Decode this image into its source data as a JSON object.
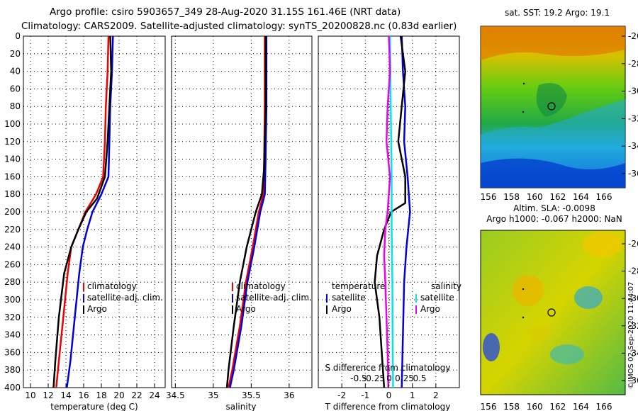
{
  "header": {
    "line1": "Argo profile: csiro 5903657_349 28-Aug-2020 31.15S 161.46E (NRT data)",
    "line2": "Climatology: CARS2009. Satellite-adjusted climatology: synTS_20200828.nc (0.83d earlier)"
  },
  "depth_ticks": [
    0,
    20,
    40,
    60,
    80,
    100,
    120,
    140,
    160,
    180,
    200,
    220,
    240,
    260,
    280,
    300,
    320,
    340,
    360,
    380,
    400
  ],
  "colors": {
    "climatology": "#ee0000",
    "satellite": "#0000dd",
    "argo": "#000000",
    "sat_salinity": "#00e5ee",
    "argo_salinity": "#ee00ee"
  },
  "chart_data": [
    {
      "type": "line",
      "id": "temperature",
      "xlabel": "temperature (deg C)",
      "xlim": [
        9.2,
        25.2
      ],
      "ylim": [
        0,
        400
      ],
      "xticks": [
        10,
        12,
        14,
        16,
        18,
        20,
        22,
        24
      ],
      "xtick_labels": [
        "10",
        "12",
        "14",
        "16",
        "18",
        "20",
        "22",
        "24"
      ],
      "legend": [
        "climatology",
        "satellite-adj. clim.",
        "Argo"
      ],
      "series": [
        {
          "name": "climatology",
          "color_key": "climatology",
          "points": [
            [
              18.8,
              0
            ],
            [
              18.7,
              40
            ],
            [
              18.5,
              80
            ],
            [
              18.4,
              120
            ],
            [
              18.2,
              160
            ],
            [
              17.4,
              180
            ],
            [
              16.2,
              200
            ],
            [
              15.4,
              220
            ],
            [
              14.6,
              240
            ],
            [
              14.2,
              270
            ],
            [
              13.7,
              320
            ],
            [
              13.2,
              370
            ],
            [
              12.9,
              400
            ]
          ]
        },
        {
          "name": "satellite-adj. clim.",
          "color_key": "satellite",
          "points": [
            [
              19.3,
              0
            ],
            [
              19.2,
              40
            ],
            [
              19.0,
              80
            ],
            [
              18.9,
              120
            ],
            [
              18.8,
              160
            ],
            [
              18.0,
              180
            ],
            [
              17.0,
              200
            ],
            [
              16.4,
              220
            ],
            [
              15.9,
              240
            ],
            [
              15.5,
              270
            ],
            [
              15.0,
              320
            ],
            [
              14.5,
              370
            ],
            [
              14.1,
              400
            ]
          ]
        },
        {
          "name": "Argo",
          "color_key": "argo",
          "points": [
            [
              19.0,
              0
            ],
            [
              19.1,
              40
            ],
            [
              18.9,
              80
            ],
            [
              18.7,
              120
            ],
            [
              18.4,
              160
            ],
            [
              17.5,
              185
            ],
            [
              16.3,
              200
            ],
            [
              15.4,
              220
            ],
            [
              14.6,
              240
            ],
            [
              13.8,
              270
            ],
            [
              13.2,
              320
            ],
            [
              12.8,
              370
            ],
            [
              12.6,
              400
            ]
          ]
        }
      ]
    },
    {
      "type": "line",
      "id": "salinity",
      "xlabel": "salinity",
      "xlim": [
        34.45,
        36.3
      ],
      "ylim": [
        0,
        400
      ],
      "xticks": [
        34.5,
        35,
        35.5,
        36
      ],
      "xtick_labels": [
        "34.5",
        "35",
        "35.5",
        "36"
      ],
      "legend": [
        "climatology",
        "satellite-adj. clim.",
        "Argo"
      ],
      "series": [
        {
          "name": "climatology",
          "color_key": "climatology",
          "points": [
            [
              35.68,
              0
            ],
            [
              35.68,
              80
            ],
            [
              35.67,
              140
            ],
            [
              35.66,
              180
            ],
            [
              35.6,
              200
            ],
            [
              35.52,
              240
            ],
            [
              35.43,
              280
            ],
            [
              35.35,
              330
            ],
            [
              35.25,
              380
            ],
            [
              35.2,
              400
            ]
          ]
        },
        {
          "name": "satellite-adj. clim.",
          "color_key": "satellite",
          "points": [
            [
              35.7,
              0
            ],
            [
              35.7,
              80
            ],
            [
              35.69,
              140
            ],
            [
              35.68,
              180
            ],
            [
              35.62,
              200
            ],
            [
              35.54,
              240
            ],
            [
              35.45,
              280
            ],
            [
              35.37,
              330
            ],
            [
              35.27,
              380
            ],
            [
              35.22,
              400
            ]
          ]
        },
        {
          "name": "Argo",
          "color_key": "argo",
          "points": [
            [
              35.69,
              0
            ],
            [
              35.69,
              80
            ],
            [
              35.67,
              150
            ],
            [
              35.64,
              180
            ],
            [
              35.56,
              200
            ],
            [
              35.44,
              240
            ],
            [
              35.35,
              280
            ],
            [
              35.27,
              330
            ],
            [
              35.2,
              380
            ],
            [
              35.18,
              400
            ]
          ]
        }
      ]
    },
    {
      "type": "line",
      "id": "difference",
      "xlabel": "T difference from climatology",
      "xlabel2": "S difference  from climatology",
      "xlim": [
        -3,
        3
      ],
      "ylim": [
        0,
        400
      ],
      "xticks": [
        -2,
        -1,
        0,
        1,
        2
      ],
      "xtick_labels": [
        "-2",
        "-1",
        "0",
        "1",
        "2"
      ],
      "sticks": [
        -0.5,
        -0.25,
        0,
        0.25,
        0.5
      ],
      "stick_labels": [
        "-0.5",
        "-0.25",
        "0",
        "0.25",
        "0.5"
      ],
      "legend_left_title": "temperature",
      "legend_right_title": "salinity",
      "legend_left": [
        "satellite",
        "Argo"
      ],
      "legend_right": [
        "satellite",
        "Argo"
      ],
      "series": [
        {
          "name": "T satellite",
          "color_key": "satellite",
          "points": [
            [
              0.55,
              0
            ],
            [
              0.6,
              40
            ],
            [
              0.7,
              80
            ],
            [
              0.65,
              120
            ],
            [
              0.8,
              160
            ],
            [
              0.9,
              200
            ],
            [
              0.75,
              240
            ],
            [
              0.65,
              280
            ],
            [
              0.6,
              340
            ],
            [
              0.55,
              400
            ]
          ]
        },
        {
          "name": "T Argo",
          "color_key": "argo",
          "points": [
            [
              0.5,
              0
            ],
            [
              0.7,
              40
            ],
            [
              0.55,
              80
            ],
            [
              0.4,
              120
            ],
            [
              0.7,
              160
            ],
            [
              0.7,
              190
            ],
            [
              0.1,
              200
            ],
            [
              -0.2,
              220
            ],
            [
              -0.5,
              250
            ],
            [
              -0.6,
              280
            ],
            [
              -0.4,
              320
            ],
            [
              -0.3,
              360
            ],
            [
              -0.2,
              400
            ]
          ]
        },
        {
          "name": "S satellite",
          "color_key": "sat_salinity",
          "points": [
            [
              0.05,
              0
            ],
            [
              0.08,
              80
            ],
            [
              0.12,
              160
            ],
            [
              0.12,
              220
            ],
            [
              0.15,
              280
            ],
            [
              0.16,
              340
            ],
            [
              0.18,
              400
            ]
          ]
        },
        {
          "name": "S Argo",
          "color_key": "argo_salinity",
          "points": [
            [
              0.0,
              0
            ],
            [
              0.05,
              40
            ],
            [
              -0.05,
              80
            ],
            [
              -0.1,
              120
            ],
            [
              0.05,
              160
            ],
            [
              -0.05,
              200
            ],
            [
              -0.15,
              220
            ],
            [
              -0.2,
              250
            ],
            [
              -0.15,
              280
            ],
            [
              -0.1,
              320
            ],
            [
              -0.05,
              360
            ],
            [
              -0.02,
              400
            ]
          ]
        }
      ]
    }
  ],
  "maps": {
    "top_title": "sat. SST: 19.2 Argo: 19.1",
    "bottom_title_line1": "Altim. SLA: -0.0098",
    "bottom_title_line2": "Argo h1000: -0.067 h2000: NaN",
    "lat_ticks": [
      "-26",
      "-28",
      "-30",
      "-32",
      "-34",
      "-36"
    ],
    "lon_ticks": [
      "156",
      "158",
      "160",
      "162",
      "164",
      "166"
    ],
    "stamp": "©IMOS 02-Sep-2020 11:44:07"
  }
}
